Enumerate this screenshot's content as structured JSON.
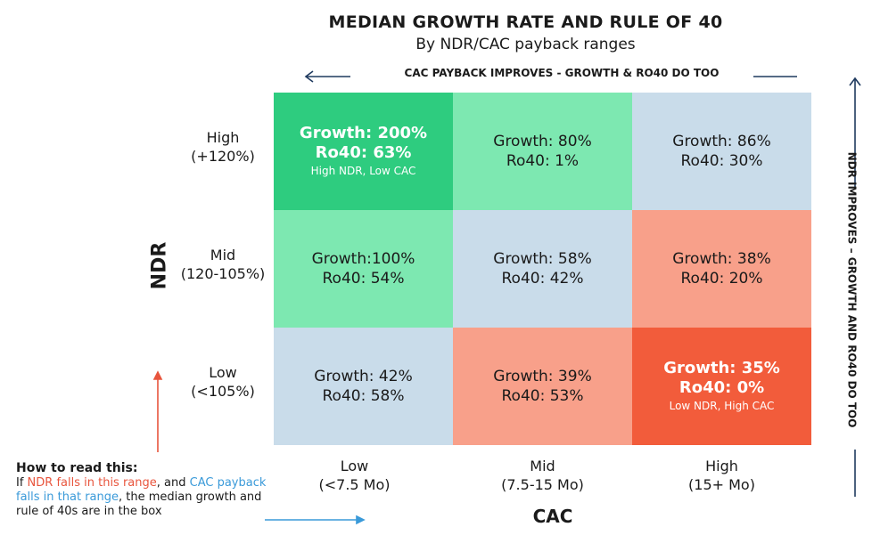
{
  "chart_data": {
    "type": "heatmap",
    "title": "MEDIAN GROWTH RATE AND RULE OF 40",
    "subtitle": "By NDR/CAC payback ranges",
    "xlabel": "CAC",
    "ylabel": "NDR",
    "x_categories": [
      {
        "name": "Low",
        "range": "(<7.5 Mo)"
      },
      {
        "name": "Mid",
        "range": "(7.5-15 Mo)"
      },
      {
        "name": "High",
        "range": "(15+ Mo)"
      }
    ],
    "y_categories": [
      {
        "name": "High",
        "range": "(+120%)"
      },
      {
        "name": "Mid",
        "range": "(120-105%)"
      },
      {
        "name": "Low",
        "range": "(<105%)"
      }
    ],
    "cells": [
      [
        {
          "growth": "Growth: 200%",
          "ro40": "Ro40: 63%",
          "note": "High NDR, Low CAC",
          "color": "#2ecc7f",
          "bold": true
        },
        {
          "growth": "Growth: 80%",
          "ro40": "Ro40: 1%",
          "color": "#7de8b1"
        },
        {
          "growth": "Growth: 86%",
          "ro40": "Ro40: 30%",
          "color": "#c9dcea"
        }
      ],
      [
        {
          "growth": "Growth:100%",
          "ro40": "Ro40: 54%",
          "color": "#7de8b1"
        },
        {
          "growth": "Growth: 58%",
          "ro40": "Ro40: 42%",
          "color": "#c9dcea"
        },
        {
          "growth": "Growth: 38%",
          "ro40": "Ro40: 20%",
          "color": "#f8a08a"
        }
      ],
      [
        {
          "growth": "Growth: 42%",
          "ro40": "Ro40: 58%",
          "color": "#c9dcea"
        },
        {
          "growth": "Growth: 39%",
          "ro40": "Ro40: 53%",
          "color": "#f8a08a"
        },
        {
          "growth": "Growth: 35%",
          "ro40": "Ro40: 0%",
          "note": "Low NDR, High CAC",
          "color": "#f25c3b",
          "bold": true
        }
      ]
    ],
    "annotations": {
      "top_arrow": "CAC PAYBACK IMPROVES - GROWTH & RO40 DO TOO",
      "side_arrow": "NDR IMPROVES – GROWTH AND RO40 DO TOO"
    }
  },
  "howto": {
    "heading": "How to read this:",
    "p1": "If ",
    "p2": "NDR falls in this range",
    "p3": ", and ",
    "p4": "CAC payback falls in that range",
    "p5": ", the median growth and rule of 40s are in the box"
  },
  "colors": {
    "arrow_dark": "#1f3a5f",
    "arrow_red": "#e8553d",
    "arrow_blue": "#3a9ad9"
  }
}
